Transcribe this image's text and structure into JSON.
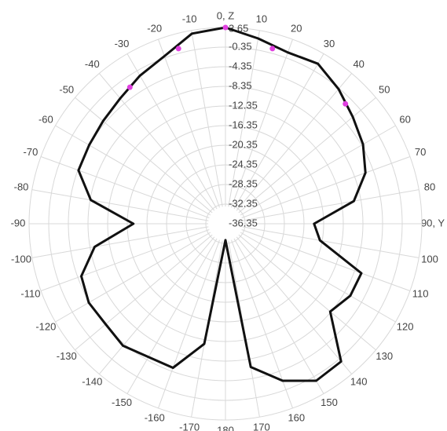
{
  "chart_data": {
    "type": "polar",
    "theta": [
      0,
      10,
      20,
      30,
      40,
      50,
      60,
      70,
      80,
      90,
      100,
      110,
      120,
      130,
      140,
      150,
      160,
      170,
      180,
      -170,
      -160,
      -150,
      -140,
      -130,
      -120,
      -110,
      -100,
      -90,
      -80,
      -70,
      -60,
      -50,
      -40,
      -30,
      -20,
      -10
    ],
    "values": [
      3.65,
      2,
      0.8,
      1.3,
      -0.5,
      -2.5,
      -4,
      -6,
      -9.8,
      -18.3,
      -16.8,
      -6.9,
      -7,
      -8.5,
      0.3,
      0.6,
      -2.3,
      -6.7,
      -33,
      -11.5,
      -5.1,
      -5,
      -3.9,
      -4.5,
      -4.2,
      -5.1,
      -9.3,
      -17.6,
      -8.5,
      -4.5,
      -4.3,
      -3.8,
      -3,
      -1.5,
      0,
      3
    ],
    "color": "#111111",
    "markers": {
      "theta": [
        0,
        15,
        -15,
        -35,
        45
      ],
      "values": [
        3.65,
        0.6,
        0.6,
        -2.4,
        -1.8
      ],
      "color": "#e040e0"
    },
    "rlim": [
      -36.35,
      3.65
    ],
    "rticks": [
      3.65,
      -0.35,
      -4.35,
      -8.35,
      -12.35,
      -16.35,
      -20.35,
      -24.35,
      -28.35,
      -32.35,
      -36.35
    ],
    "thetaticks": [
      {
        "value": 0,
        "label": "0, Z"
      },
      10,
      20,
      30,
      40,
      50,
      60,
      70,
      80,
      {
        "value": 90,
        "label": "90, Y"
      },
      100,
      110,
      120,
      130,
      140,
      150,
      160,
      170,
      180,
      -170,
      -160,
      -150,
      -140,
      -130,
      -120,
      -110,
      -100,
      -90,
      -80,
      -70,
      -60,
      -50,
      -40,
      -30,
      -20,
      -10
    ]
  }
}
